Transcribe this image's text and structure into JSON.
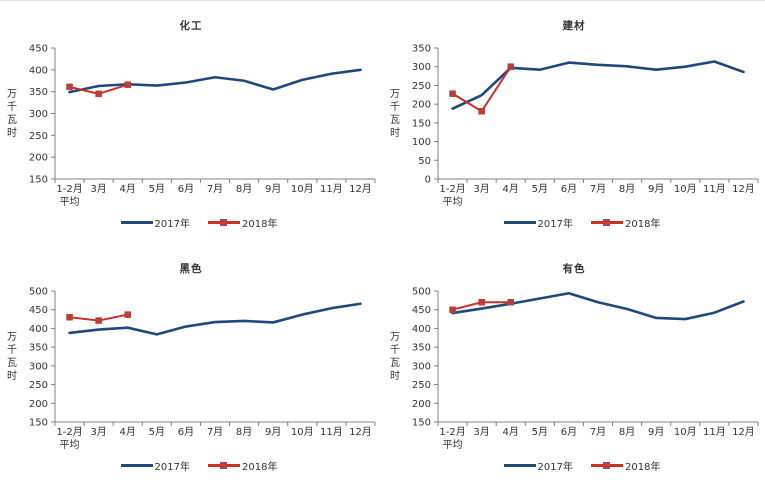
{
  "colors": {
    "series_2017": "#1F497D",
    "series_2018_line": "#C9302C",
    "series_2018_marker": "#B5413F",
    "axis_line": "#808080",
    "text": "#333333",
    "background": "#FFFFFF"
  },
  "y_axis_unit": "万千瓦时",
  "x_category_display_lines": [
    [
      "1-2月",
      "平均"
    ],
    [
      "3月"
    ],
    [
      "4月"
    ],
    [
      "5月"
    ],
    [
      "6月"
    ],
    [
      "7月"
    ],
    [
      "8月"
    ],
    [
      "9月"
    ],
    [
      "10月"
    ],
    [
      "11月"
    ],
    [
      "12月"
    ]
  ],
  "chart_data": [
    {
      "type": "line",
      "title": "化工",
      "ylabel": "万千瓦时",
      "ylim": [
        150,
        450
      ],
      "ytick_step": 50,
      "grid": false,
      "legend_position": "bottom",
      "categories": [
        "1-2月平均",
        "3月",
        "4月",
        "5月",
        "6月",
        "7月",
        "8月",
        "9月",
        "10月",
        "11月",
        "12月"
      ],
      "series": [
        {
          "name": "2017年",
          "marker": "none",
          "values": [
            349,
            363,
            367,
            364,
            371,
            383,
            375,
            355,
            377,
            391,
            400
          ]
        },
        {
          "name": "2018年",
          "marker": "square",
          "values": [
            361,
            345,
            366
          ]
        }
      ]
    },
    {
      "type": "line",
      "title": "建材",
      "ylabel": "万千瓦时",
      "ylim": [
        0,
        350
      ],
      "ytick_step": 50,
      "grid": false,
      "legend_position": "bottom",
      "categories": [
        "1-2月平均",
        "3月",
        "4月",
        "5月",
        "6月",
        "7月",
        "8月",
        "9月",
        "10月",
        "11月",
        "12月"
      ],
      "series": [
        {
          "name": "2017年",
          "marker": "none",
          "values": [
            188,
            224,
            297,
            292,
            311,
            305,
            301,
            292,
            300,
            314,
            286
          ]
        },
        {
          "name": "2018年",
          "marker": "square",
          "values": [
            228,
            181,
            300
          ]
        }
      ]
    },
    {
      "type": "line",
      "title": "黑色",
      "ylabel": "万千瓦时",
      "ylim": [
        150,
        500
      ],
      "ytick_step": 50,
      "grid": false,
      "legend_position": "bottom",
      "categories": [
        "1-2月平均",
        "3月",
        "4月",
        "5月",
        "6月",
        "7月",
        "8月",
        "9月",
        "10月",
        "11月",
        "12月"
      ],
      "series": [
        {
          "name": "2017年",
          "marker": "none",
          "values": [
            388,
            397,
            402,
            384,
            405,
            417,
            420,
            416,
            437,
            454,
            466
          ]
        },
        {
          "name": "2018年",
          "marker": "square",
          "values": [
            430,
            421,
            437
          ]
        }
      ]
    },
    {
      "type": "line",
      "title": "有色",
      "ylabel": "万千瓦时",
      "ylim": [
        150,
        500
      ],
      "ytick_step": 50,
      "grid": false,
      "legend_position": "bottom",
      "categories": [
        "1-2月平均",
        "3月",
        "4月",
        "5月",
        "6月",
        "7月",
        "8月",
        "9月",
        "10月",
        "11月",
        "12月"
      ],
      "series": [
        {
          "name": "2017年",
          "marker": "none",
          "values": [
            441,
            453,
            466,
            480,
            494,
            470,
            452,
            428,
            425,
            442,
            472
          ]
        },
        {
          "name": "2018年",
          "marker": "square",
          "values": [
            450,
            470,
            470
          ]
        }
      ]
    }
  ]
}
